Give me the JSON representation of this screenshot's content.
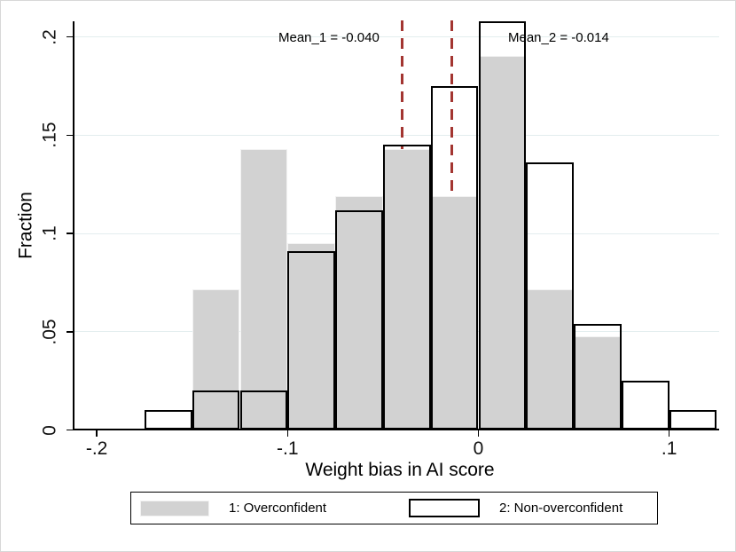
{
  "chart_data": {
    "type": "bar",
    "subtype": "overlaid-histogram",
    "title": "",
    "xlabel": "Weight bias in AI score",
    "ylabel": "Fraction",
    "bin_start": -0.175,
    "bin_width": 0.025,
    "xlim": [
      -0.2125,
      0.126
    ],
    "ylim": [
      0,
      0.2085
    ],
    "grid": "horizontal",
    "x_ticks": {
      "values": [
        -0.2,
        -0.1,
        0,
        0.1
      ],
      "labels": [
        "-.2",
        "-.1",
        "0",
        ".1"
      ]
    },
    "y_ticks": {
      "values": [
        0,
        0.05,
        0.1,
        0.15,
        0.2
      ],
      "labels": [
        "0",
        ".05",
        ".1",
        ".15",
        ".2"
      ]
    },
    "series": [
      {
        "name": "1: Overconfident",
        "style": "filled",
        "fill_color": "#d2d2d2",
        "values": [
          0,
          0.0714,
          0.1429,
          0.0952,
          0.119,
          0.1429,
          0.119,
          0.1905,
          0.0714,
          0.0476,
          0,
          0
        ]
      },
      {
        "name": "2: Non-overconfident",
        "style": "hollow",
        "outline_color": "#000000",
        "values": [
          0.01,
          0.02,
          0.02,
          0.091,
          0.112,
          0.145,
          0.175,
          0.208,
          0.136,
          0.054,
          0.025,
          0.01
        ]
      }
    ],
    "mean_lines": [
      {
        "label": "Mean_1 = -0.040",
        "x": -0.04,
        "color": "#a33531",
        "style": "dashed"
      },
      {
        "label": "Mean_2 = -0.014",
        "x": -0.014,
        "color": "#a33531",
        "style": "dashed"
      }
    ],
    "legend": {
      "position": "bottom",
      "entries": [
        {
          "label": "1: Overconfident",
          "swatch": "filled-gray"
        },
        {
          "label": "2: Non-overconfident",
          "swatch": "hollow-black-outline"
        }
      ]
    }
  },
  "colors": {
    "bar_fill": "#d2d2d2",
    "bar_outline": "#000000",
    "mean_line": "#a33531",
    "gridline": "#e3edee",
    "axis": "#000000",
    "figure_border": "#d8d8d8",
    "background": "#ffffff"
  }
}
